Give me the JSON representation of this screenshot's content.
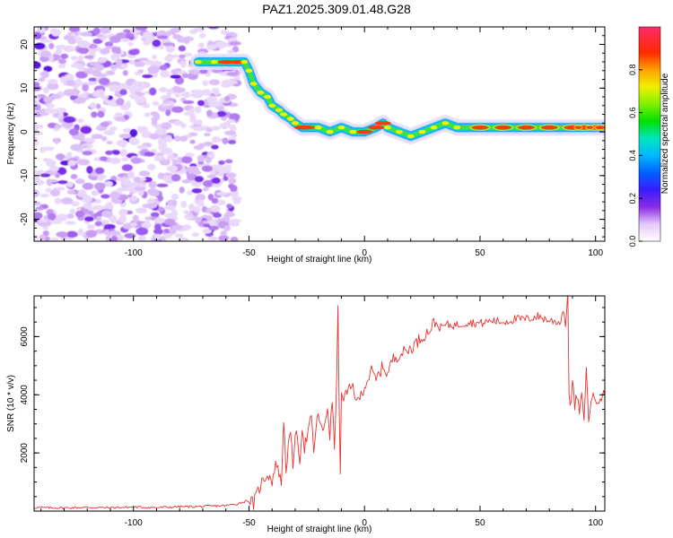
{
  "title": "PAZ1.2025.309.01.48.G28",
  "chart_data": [
    {
      "type": "heatmap",
      "xlabel": "Height of straight line (km)",
      "ylabel": "Frequency (Hz)",
      "xlim": [
        -143,
        104
      ],
      "ylim": [
        -25,
        24
      ],
      "xticks": [
        -100,
        -50,
        0,
        50,
        100
      ],
      "xtick_labels": [
        "-100",
        "-50",
        "0",
        "50",
        "100"
      ],
      "yticks": [
        -20,
        -10,
        0,
        10,
        20
      ],
      "ytick_labels": [
        "-20",
        "-10",
        "0",
        "10",
        "20"
      ],
      "noise_region_x": [
        -143,
        -55
      ],
      "ridge": {
        "x": [
          -72,
          -65,
          -60,
          -55,
          -52,
          -50,
          -48,
          -45,
          -42,
          -40,
          -37,
          -35,
          -32,
          -30,
          -27,
          -25,
          -20,
          -15,
          -10,
          -5,
          0,
          5,
          8,
          10,
          15,
          20,
          25,
          30,
          35,
          40,
          50,
          60,
          70,
          80,
          90,
          95,
          100,
          104
        ],
        "frequency_hz": [
          16,
          16,
          16,
          16,
          16,
          14,
          11,
          9,
          8,
          6,
          5,
          4,
          3,
          2,
          1,
          1,
          1,
          0,
          1,
          0,
          0,
          1,
          2,
          1,
          0,
          -1,
          0,
          1,
          2,
          1,
          1,
          1,
          1,
          1,
          1,
          1,
          1,
          1
        ]
      },
      "colorbar": {
        "label": "Normalized spectral amplitude",
        "range": [
          0,
          1
        ],
        "ticks": [
          0.0,
          0.2,
          0.4,
          0.6,
          0.8
        ],
        "tick_labels": [
          "0.0",
          "0.2",
          "0.4",
          "0.6",
          "0.8"
        ]
      }
    },
    {
      "type": "line",
      "xlabel": "Height of straight line (km)",
      "ylabel": "SNR (10 * v/v)",
      "xlim": [
        -143,
        104
      ],
      "ylim": [
        0,
        7400
      ],
      "xticks": [
        -100,
        -50,
        0,
        50,
        100
      ],
      "xtick_labels": [
        "-100",
        "-50",
        "0",
        "50",
        "100"
      ],
      "yticks": [
        2000,
        4000,
        6000
      ],
      "ytick_labels": [
        "2000",
        "4000",
        "6000"
      ],
      "color": "#e8322f",
      "series": [
        {
          "name": "SNR",
          "x": [
            -143,
            -130,
            -120,
            -110,
            -100,
            -90,
            -80,
            -70,
            -60,
            -55,
            -50,
            -48,
            -45,
            -42,
            -40,
            -38,
            -36,
            -35,
            -34,
            -32,
            -31,
            -30,
            -28,
            -27,
            -26,
            -25,
            -23,
            -22,
            -20,
            -18,
            -16,
            -15,
            -14,
            -13,
            -12,
            -11.5,
            -11,
            -10.5,
            -10,
            -8,
            -5,
            -3,
            0,
            3,
            5,
            8,
            10,
            12,
            15,
            18,
            20,
            25,
            28,
            30,
            33,
            35,
            40,
            45,
            50,
            55,
            60,
            65,
            70,
            75,
            80,
            85,
            86,
            87,
            88,
            88.5,
            89,
            89.5,
            90,
            91,
            92,
            93,
            94,
            95,
            96,
            97,
            98,
            100,
            104
          ],
          "y": [
            120,
            110,
            130,
            115,
            140,
            120,
            150,
            160,
            190,
            250,
            380,
            250,
            900,
            1300,
            1050,
            1700,
            900,
            3200,
            1500,
            2700,
            1500,
            2800,
            1800,
            2900,
            2200,
            2500,
            3200,
            2100,
            3400,
            2600,
            3600,
            2600,
            3800,
            2200,
            4500,
            7200,
            4000,
            1100,
            3900,
            4000,
            4300,
            3700,
            4300,
            4800,
            4500,
            5000,
            4700,
            5200,
            5400,
            5500,
            5600,
            6000,
            6200,
            6500,
            6300,
            6400,
            6400,
            6500,
            6450,
            6550,
            6500,
            6600,
            6600,
            6700,
            6550,
            6500,
            7000,
            6400,
            7400,
            4200,
            3800,
            3700,
            4500,
            3600,
            4000,
            3400,
            3900,
            3300,
            4800,
            3100,
            3900,
            3850,
            4000
          ]
        }
      ]
    }
  ]
}
